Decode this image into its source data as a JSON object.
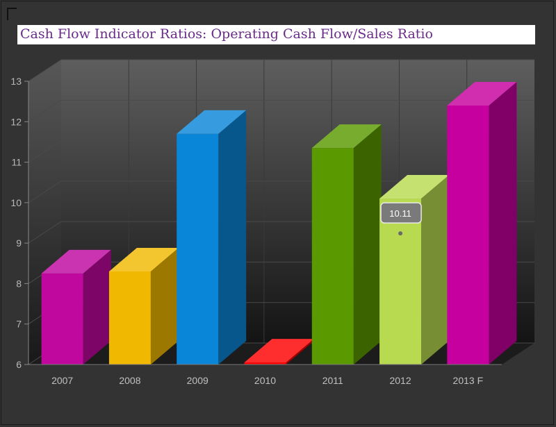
{
  "chart_data": {
    "type": "bar",
    "title": "Cash Flow Indicator Ratios:  Operating Cash Flow/Sales Ratio",
    "xlabel": "",
    "ylabel": "",
    "categories": [
      "2007",
      "2008",
      "2009",
      "2010",
      "2011",
      "2012",
      "2013 F"
    ],
    "values": [
      8.25,
      8.3,
      11.7,
      6.05,
      11.35,
      10.1,
      12.4
    ],
    "colors": [
      "#c0089f",
      "#f0b800",
      "#0a86d8",
      "#ff0000",
      "#5a9a00",
      "#b8da50",
      "#c6009e"
    ],
    "ylim": [
      6,
      13
    ],
    "yticks": [
      "6",
      "7",
      "8",
      "9",
      "10",
      "11",
      "12",
      "13"
    ],
    "grid": true,
    "tooltip": {
      "category": "2012",
      "value_label": "10.11"
    }
  }
}
